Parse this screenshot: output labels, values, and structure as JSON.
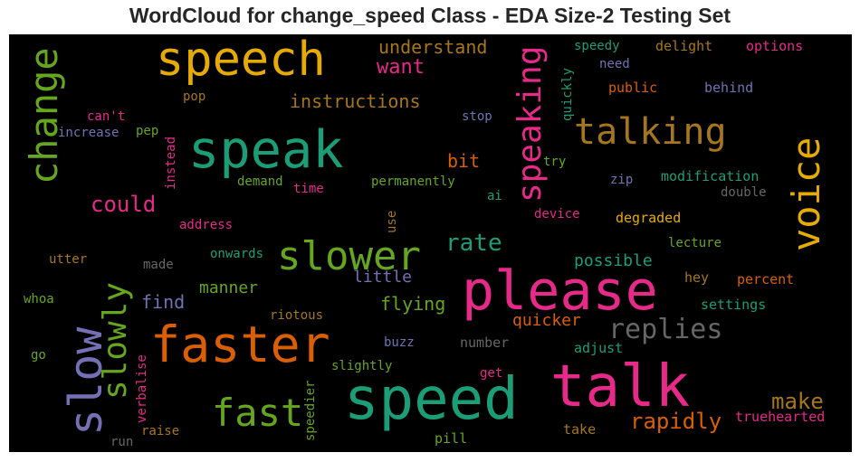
{
  "title": "WordCloud for change_speed Class - EDA Size-2 Testing Set",
  "colors": {
    "teal": "#1b9e77",
    "orange": "#d95f02",
    "purple": "#7570b3",
    "pink": "#e7298a",
    "green": "#66a61e",
    "gold": "#e6ab02",
    "brown": "#a6761d",
    "gray": "#666666"
  },
  "words": {
    "speech": "speech",
    "speak": "speak",
    "change": "change",
    "speaking": "speaking",
    "talking": "talking",
    "voice": "voice",
    "slower": "slower",
    "please": "please",
    "faster": "faster",
    "slow": "slow",
    "slowly": "slowly",
    "speed": "speed",
    "talk": "talk",
    "fast": "fast",
    "replies": "replies",
    "rate": "rate",
    "could": "could",
    "make": "make",
    "rapidly": "rapidly",
    "understand": "understand",
    "want": "want",
    "instructions": "instructions",
    "bit": "bit",
    "find": "find",
    "manner": "manner",
    "little": "little",
    "flying": "flying",
    "quicker": "quicker",
    "possible": "possible",
    "speedy": "speedy",
    "delight": "delight",
    "options": "options",
    "need": "need",
    "public": "public",
    "behind": "behind",
    "quickly": "quickly",
    "stop": "stop",
    "try": "try",
    "zip": "zip",
    "modification": "modification",
    "double": "double",
    "pop": "pop",
    "cant": "can't",
    "increase": "increase",
    "pep": "pep",
    "instead": "instead",
    "demand": "demand",
    "time": "time",
    "permanently": "permanently",
    "ai": "ai",
    "device": "device",
    "degraded": "degraded",
    "address": "address",
    "use": "use",
    "lecture": "lecture",
    "utter": "utter",
    "made": "made",
    "onwards": "onwards",
    "hey": "hey",
    "percent": "percent",
    "whoa": "whoa",
    "settings": "settings",
    "riotous": "riotous",
    "go": "go",
    "verbalise": "verbalise",
    "buzz": "buzz",
    "number": "number",
    "adjust": "adjust",
    "slightly": "slightly",
    "get": "get",
    "speedier": "speedier",
    "raise": "raise",
    "run": "run",
    "take": "take",
    "truehearted": "truehearted",
    "pill": "pill"
  }
}
